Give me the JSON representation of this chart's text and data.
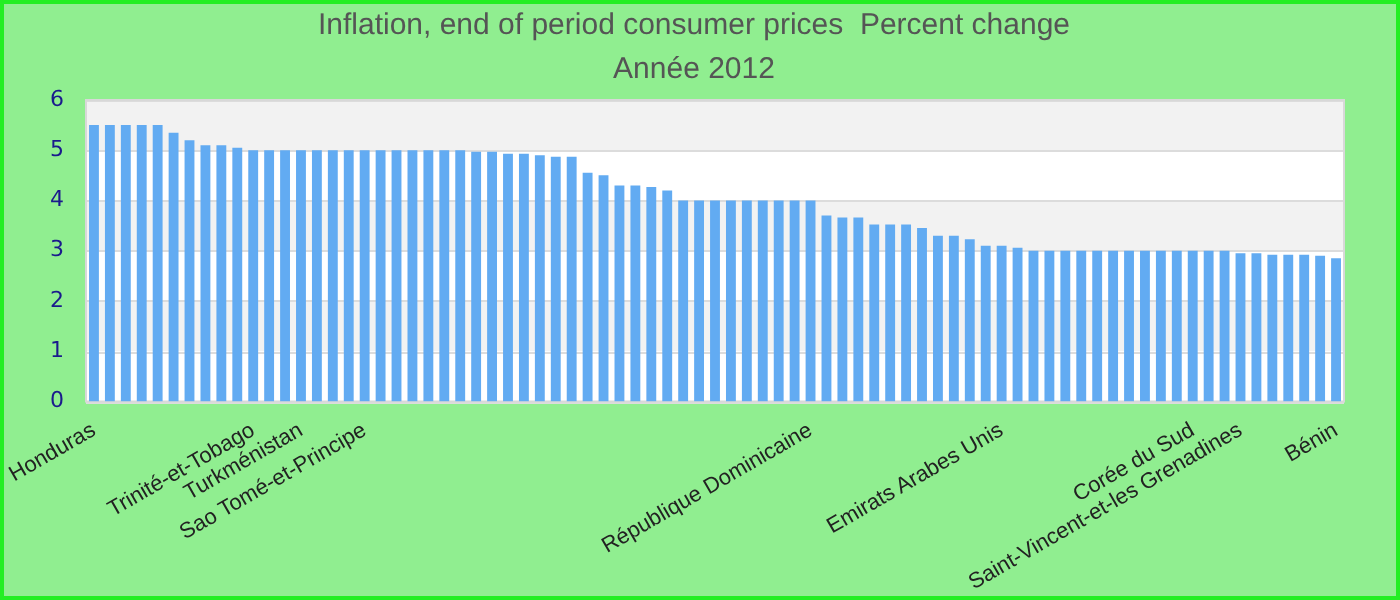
{
  "chart_data": {
    "type": "bar",
    "title": "Inflation, end of period consumer prices  Percent change",
    "subtitle": "Année 2012",
    "categories": [
      "Honduras",
      null,
      null,
      null,
      null,
      null,
      null,
      null,
      null,
      null,
      "Trinité-et-Tobago",
      null,
      null,
      "Turkménistan",
      null,
      null,
      null,
      "Sao Tomé-et-Principe",
      null,
      null,
      null,
      null,
      null,
      null,
      null,
      null,
      null,
      null,
      null,
      null,
      null,
      null,
      null,
      null,
      null,
      null,
      null,
      null,
      null,
      null,
      null,
      null,
      null,
      null,
      null,
      "République Dominicaine",
      null,
      null,
      null,
      null,
      null,
      null,
      null,
      null,
      null,
      null,
      null,
      "Emirats Arabes Unis",
      null,
      null,
      null,
      null,
      null,
      null,
      null,
      null,
      null,
      null,
      null,
      "Corée du Sud",
      null,
      null,
      "Saint-Vincent-et-les Grenadines",
      null,
      null,
      null,
      null,
      null,
      "Bénin"
    ],
    "values": [
      5.5,
      5.5,
      5.5,
      5.5,
      5.5,
      5.35,
      5.2,
      5.1,
      5.1,
      5.05,
      5,
      5,
      5,
      5,
      5,
      5,
      5,
      5,
      5,
      5,
      5,
      5,
      5,
      5,
      4.97,
      4.97,
      4.93,
      4.93,
      4.9,
      4.87,
      4.87,
      4.55,
      4.5,
      4.3,
      4.3,
      4.27,
      4.2,
      4,
      4,
      4,
      4,
      4,
      4,
      4,
      4,
      4,
      3.7,
      3.66,
      3.66,
      3.52,
      3.52,
      3.52,
      3.45,
      3.3,
      3.3,
      3.23,
      3.1,
      3.1,
      3.06,
      3,
      3,
      3,
      3,
      3,
      3,
      3,
      3,
      3,
      3,
      3,
      3,
      3,
      2.95,
      2.95,
      2.92,
      2.92,
      2.92,
      2.9,
      2.85
    ],
    "color": "#62abf2",
    "ylim": [
      0,
      6
    ],
    "yticks": [
      0,
      1,
      2,
      3,
      4,
      5,
      6
    ],
    "grid": true
  }
}
